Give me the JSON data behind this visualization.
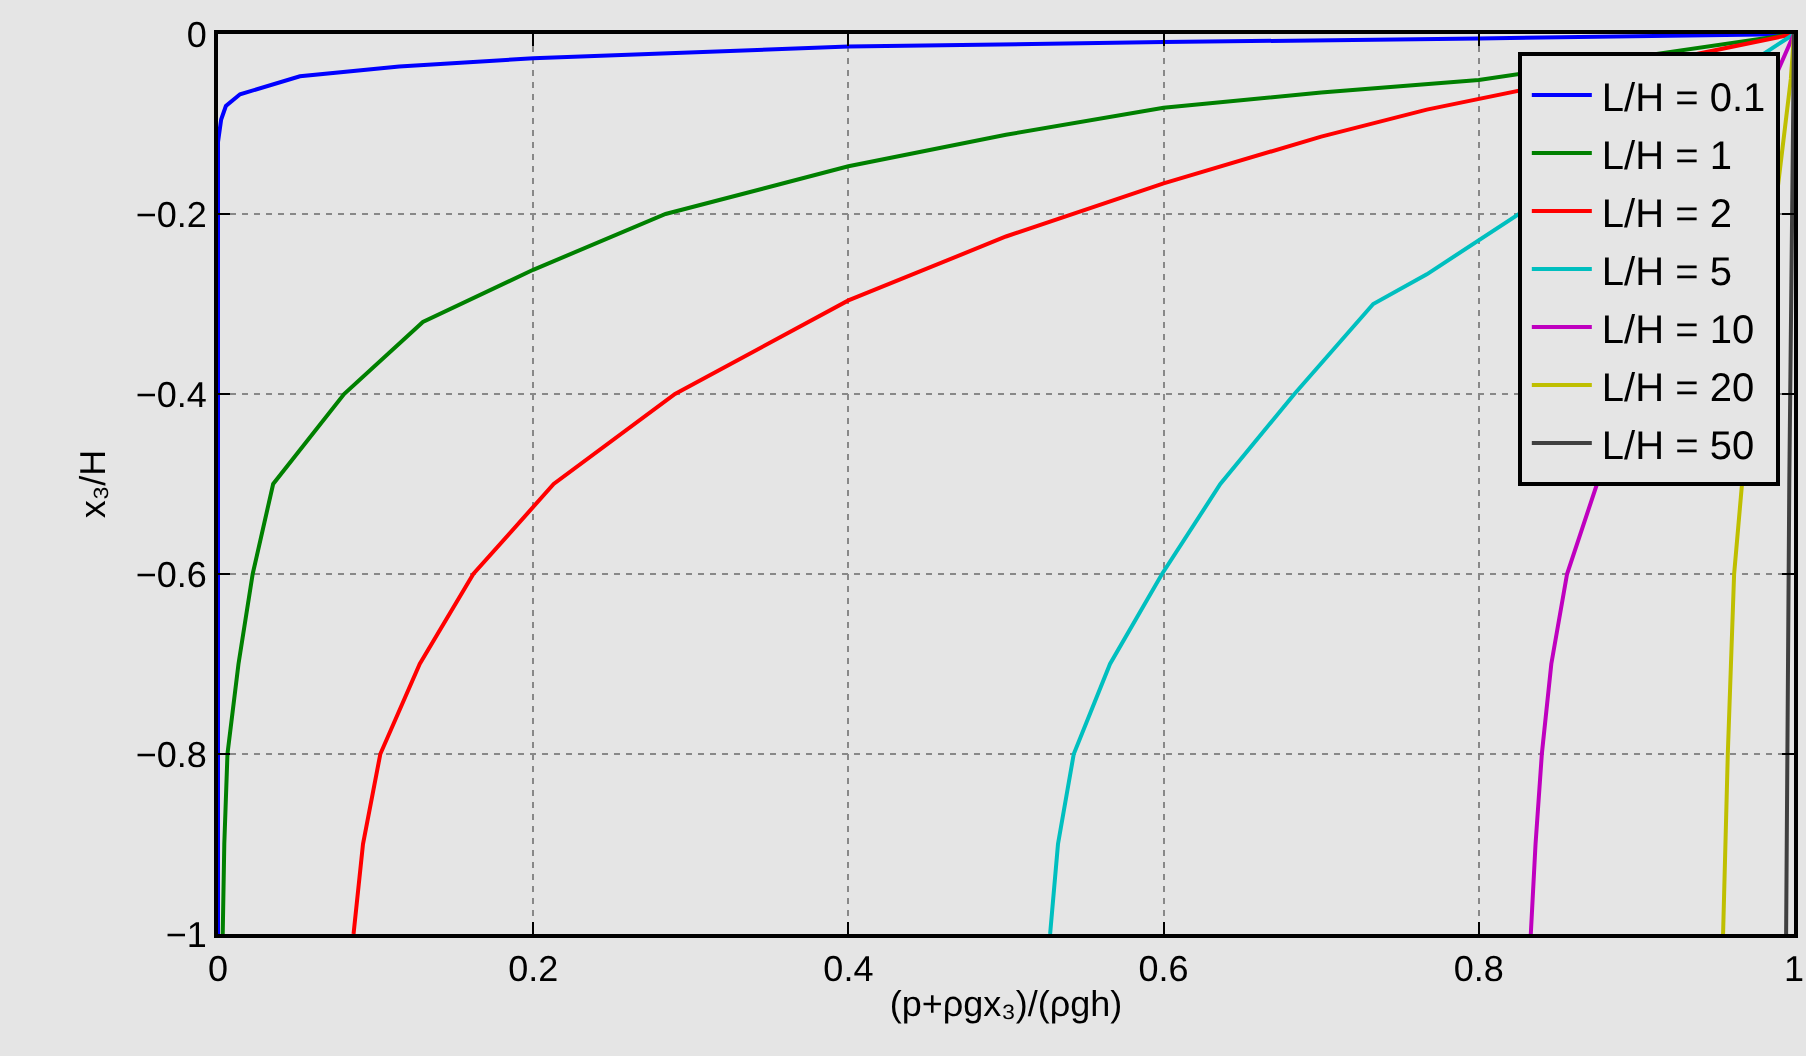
{
  "chart_data": {
    "type": "line",
    "xlabel": "(p+ρgx₃)/(ρgh)",
    "ylabel": "x₃/H",
    "xlim": [
      0,
      1
    ],
    "ylim": [
      -1,
      0
    ],
    "xticks": [
      0,
      0.2,
      0.4,
      0.6,
      0.8,
      1
    ],
    "yticks": [
      {
        "value": -1,
        "label": "−1"
      },
      {
        "value": -0.8,
        "label": "−0.8"
      },
      {
        "value": -0.6,
        "label": "−0.6"
      },
      {
        "value": -0.4,
        "label": "−0.4"
      },
      {
        "value": -0.2,
        "label": "−0.2"
      },
      0
    ],
    "grid": true,
    "legend": "top right",
    "marker": "none",
    "line_style": "solid",
    "series": [
      {
        "name": "L/H = 0.1",
        "color": "#0000ff",
        "x": [
          0,
          0,
          0.002,
          0.005,
          0.014,
          0.052,
          0.115,
          0.2,
          0.4,
          0.6,
          0.8,
          1
        ],
        "values": [
          -1,
          -0.12,
          -0.095,
          -0.08,
          -0.067,
          -0.047,
          -0.036,
          -0.027,
          -0.014,
          -0.009,
          -0.005,
          0
        ]
      },
      {
        "name": "L/H = 1",
        "color": "#008000",
        "x": [
          0.003,
          0.004,
          0.006,
          0.013,
          0.022,
          0.035,
          0.08,
          0.13,
          0.2,
          0.284,
          0.4,
          0.5,
          0.6,
          0.7,
          0.8,
          1
        ],
        "values": [
          -1,
          -0.9,
          -0.8,
          -0.7,
          -0.6,
          -0.5,
          -0.4,
          -0.32,
          -0.262,
          -0.2,
          -0.147,
          -0.112,
          -0.082,
          -0.065,
          -0.051,
          0
        ]
      },
      {
        "name": "L/H = 2",
        "color": "#ff0000",
        "x": [
          0.086,
          0.092,
          0.103,
          0.128,
          0.162,
          0.213,
          0.29,
          0.4,
          0.5,
          0.6,
          0.7,
          0.767,
          1
        ],
        "values": [
          -1,
          -0.9,
          -0.8,
          -0.7,
          -0.6,
          -0.5,
          -0.4,
          -0.296,
          -0.225,
          -0.166,
          -0.114,
          -0.084,
          0
        ]
      },
      {
        "name": "L/H = 5",
        "color": "#00bfbf",
        "x": [
          0.528,
          0.533,
          0.543,
          0.566,
          0.599,
          0.636,
          0.683,
          0.733,
          0.767,
          1
        ],
        "values": [
          -1,
          -0.9,
          -0.8,
          -0.7,
          -0.6,
          -0.5,
          -0.4,
          -0.3,
          -0.267,
          0
        ]
      },
      {
        "name": "L/H = 10",
        "color": "#bf00bf",
        "x": [
          0.833,
          0.836,
          0.84,
          0.846,
          0.856,
          0.875,
          1
        ],
        "values": [
          -1,
          -0.9,
          -0.8,
          -0.7,
          -0.6,
          -0.5,
          0
        ]
      },
      {
        "name": "L/H = 20",
        "color": "#bfbf00",
        "x": [
          0.955,
          0.958,
          0.962,
          0.967,
          0.998,
          1
        ],
        "values": [
          -1,
          -0.8,
          -0.6,
          -0.5,
          -0.05,
          0
        ]
      },
      {
        "name": "L/H = 50",
        "color": "#404040",
        "x": [
          0.995,
          0.997,
          1
        ],
        "values": [
          -1,
          -0.5,
          0
        ]
      }
    ]
  }
}
